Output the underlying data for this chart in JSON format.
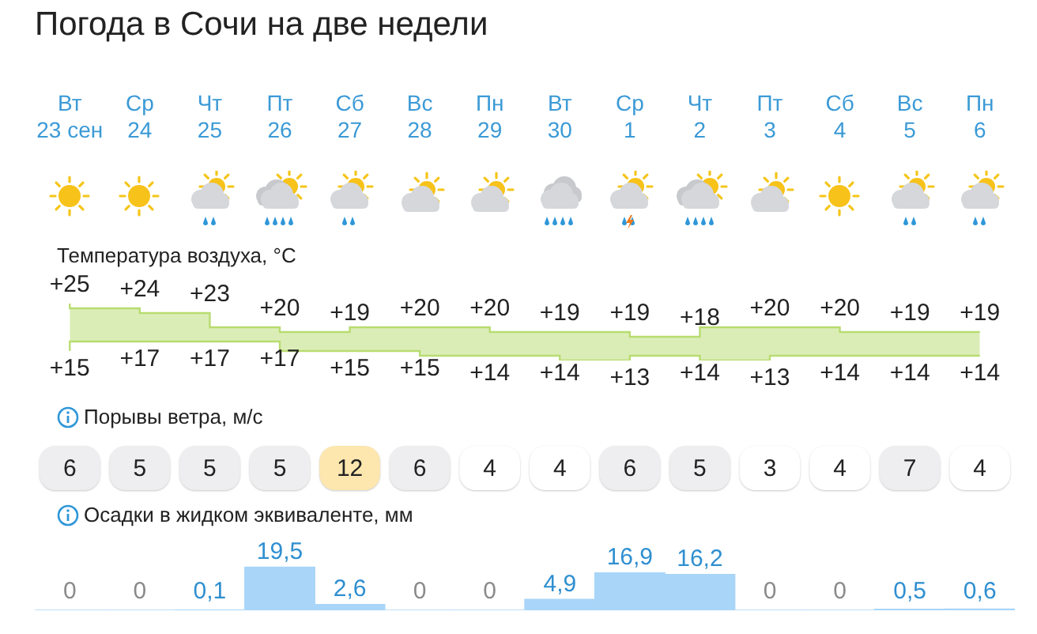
{
  "chart_data": [
    {
      "type": "step",
      "title": "Погода в Сочи на две недели",
      "subtitle": "Температура воздуха, °C",
      "tick_labels": "x",
      "categories": [
        "Вт 23 сен",
        "Ср 24",
        "Чт 25",
        "Пт 26",
        "Сб 27",
        "Вс 28",
        "Пн 29",
        "Вт 30",
        "Ср 1",
        "Чт 2",
        "Пт 3",
        "Сб 4",
        "Вс 5",
        "Пн 6"
      ],
      "series": [
        {
          "color": "#b8dc70",
          "values": [
            25,
            24,
            23,
            20,
            19,
            20,
            20,
            19,
            19,
            18,
            20,
            20,
            19,
            19
          ],
          "lower": [
            15,
            17,
            17,
            17,
            15,
            15,
            14,
            14,
            13,
            14,
            13,
            14,
            14,
            14
          ],
          "upper": [
            25,
            24,
            23,
            20,
            19,
            20,
            20,
            19,
            19,
            18,
            20,
            20,
            19,
            19
          ],
          "value_labels": [
            "+25",
            "+24",
            "+23",
            "+20",
            "+19",
            "+20",
            "+20",
            "+19",
            "+19",
            "+18",
            "+20",
            "+20",
            "+19",
            "+19"
          ]
        },
        {
          "color": "#b8dc70",
          "values": [
            15,
            17,
            17,
            17,
            15,
            15,
            14,
            14,
            13,
            14,
            13,
            14,
            14,
            14
          ],
          "value_labels": [
            "+15",
            "+17",
            "+17",
            "+17",
            "+15",
            "+15",
            "+14",
            "+14",
            "+13",
            "+14",
            "+13",
            "+14",
            "+14",
            "+14"
          ]
        }
      ]
    },
    {
      "type": "other",
      "title": "Порывы ветра, м/с",
      "data_labels": true,
      "values": [
        6,
        5,
        5,
        5,
        12,
        6,
        4,
        4,
        6,
        5,
        3,
        4,
        7,
        4
      ],
      "colors": [
        "#eeeef0",
        "#eeeef0",
        "#eeeef0",
        "#eeeef0",
        "#fde7ae",
        "#eeeef0",
        "#ffffff",
        "#ffffff",
        "#eeeef0",
        "#eeeef0",
        "#ffffff",
        "#ffffff",
        "#eeeef0",
        "#ffffff"
      ]
    },
    {
      "type": "bar",
      "title": "Осадки в жидком эквиваленте, мм",
      "tick_labels": false,
      "color": "#a8d5f8",
      "values": [
        0,
        0,
        0.1,
        19.5,
        2.6,
        0,
        0,
        4.9,
        16.9,
        16.2,
        0,
        0,
        0.5,
        0.6
      ],
      "value_labels": [
        "0",
        "0",
        "0,1",
        "19,5",
        "2,6",
        "0",
        "0",
        "4,9",
        "16,9",
        "16,2",
        "0",
        "0",
        "0,5",
        "0,6"
      ]
    }
  ]
}
